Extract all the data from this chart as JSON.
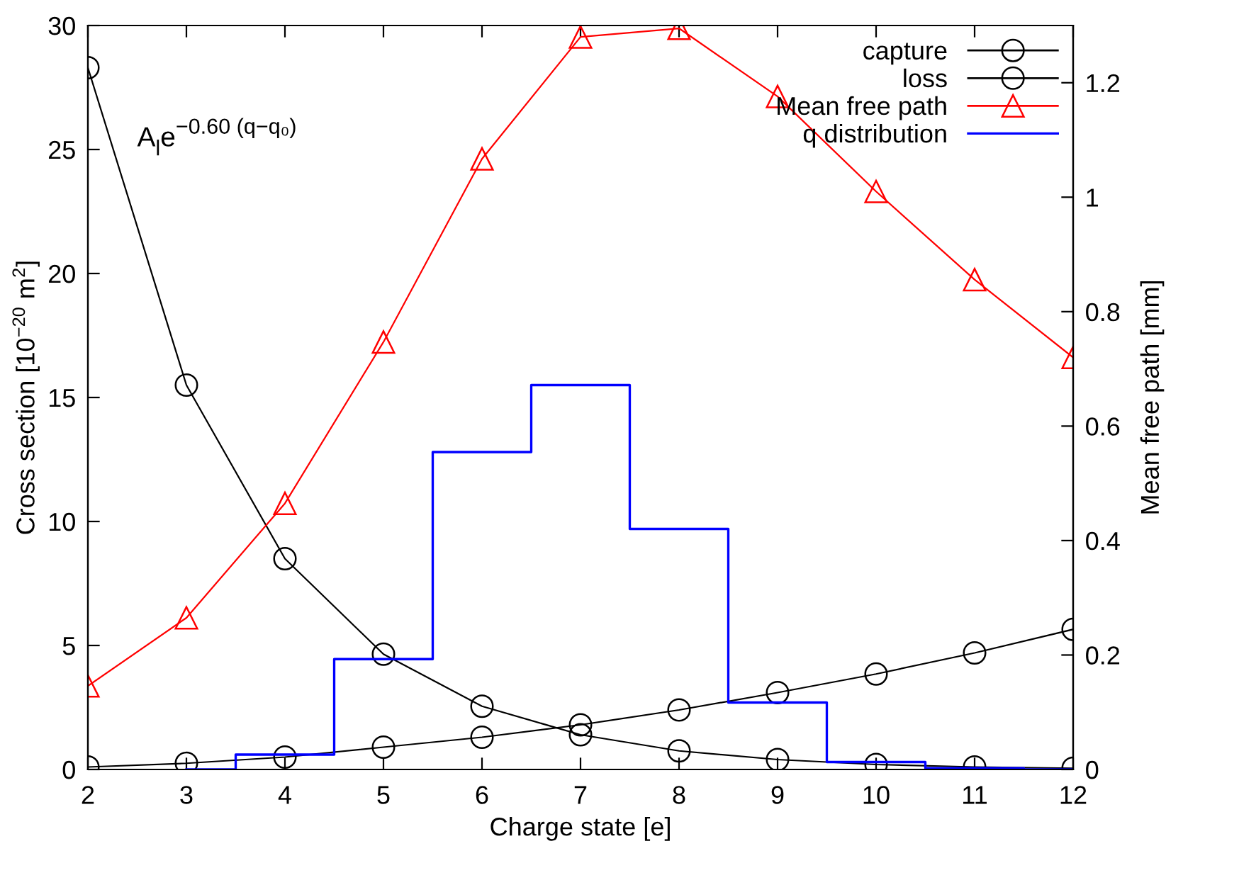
{
  "chart_data": {
    "type": "line",
    "xlabel": "Charge state [e]",
    "ylabel": "Cross section [10$^{−20}$ m$^{2}$]",
    "y2label": "Mean free path [mm]",
    "x": [
      2,
      3,
      4,
      5,
      6,
      7,
      8,
      9,
      10,
      11,
      12
    ],
    "xlim": [
      2,
      12
    ],
    "xticks": [
      2,
      3,
      4,
      5,
      6,
      7,
      8,
      9,
      10,
      11,
      12
    ],
    "ylim": [
      0,
      30
    ],
    "yticks": [
      0,
      5,
      10,
      15,
      20,
      25,
      30
    ],
    "y2lim": [
      0,
      1.3
    ],
    "y2ticks": [
      0,
      0.2,
      0.4,
      0.6,
      0.8,
      1,
      1.2
    ],
    "grid": false,
    "legend": "top right",
    "annotations": [
      "A$_{l}$e$^{−0.60 (q−q₀)}$"
    ],
    "series": [
      {
        "name": "capture",
        "color": "#000000",
        "marker": "circle",
        "values": [
          0.1,
          0.25,
          0.5,
          0.9,
          1.3,
          1.8,
          2.4,
          3.1,
          3.85,
          4.7,
          5.65
        ]
      },
      {
        "name": "loss",
        "color": "#000000",
        "marker": "circle",
        "values": [
          28.3,
          15.5,
          8.5,
          4.65,
          2.55,
          1.4,
          0.75,
          0.4,
          0.2,
          0.1,
          0.05
        ]
      },
      {
        "name": "Mean free path",
        "color": "#ff0000",
        "marker": "triangle",
        "axis": "y2",
        "values": [
          0.146,
          0.265,
          0.465,
          0.747,
          1.067,
          1.28,
          1.295,
          1.176,
          1.01,
          0.856,
          0.72
        ]
      },
      {
        "name": "q distribution",
        "type": "step",
        "color": "#0000ff",
        "marker": "none",
        "x": [
          3,
          4,
          5,
          6,
          7,
          8,
          9,
          10,
          11,
          12
        ],
        "values": [
          0,
          0.6,
          4.45,
          12.8,
          15.5,
          9.7,
          2.7,
          0.3,
          0.05,
          0
        ]
      }
    ]
  }
}
